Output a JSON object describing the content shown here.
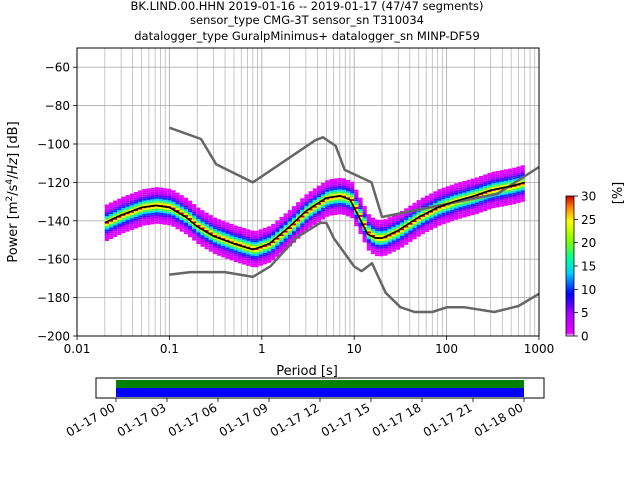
{
  "title": {
    "line1": "BK.LIND.00.HHN   2019-01-16 -- 2019-01-17  (47/47 segments)",
    "line2": "sensor_type CMG-3T sensor_sn T310034",
    "line3": "datalogger_type GuralpMinimus+ datalogger_sn MINP-DF59"
  },
  "chart_data": [
    {
      "type": "heatmap",
      "xlabel": "Period [s]",
      "ylabel": "Power [m2/s4/Hz] [dB]",
      "x_scale": "log",
      "xlim": [
        0.01,
        1000
      ],
      "ylim": [
        -200,
        -50
      ],
      "x_ticks": [
        "0.01",
        "0.1",
        "1",
        "10",
        "100",
        "1000"
      ],
      "y_ticks": [
        "−60",
        "−80",
        "−100",
        "−120",
        "−140",
        "−160",
        "−180",
        "−200"
      ],
      "y_tick_values": [
        -60,
        -80,
        -100,
        -120,
        -140,
        -160,
        -180,
        -200
      ],
      "grid": true,
      "colorbar": {
        "label": "[%]",
        "ticks": [
          "0",
          "5",
          "10",
          "15",
          "20",
          "25",
          "30"
        ],
        "range": [
          0,
          30
        ],
        "colormap": "pqlx"
      },
      "mode_curve": {
        "x": [
          0.02,
          0.03,
          0.05,
          0.07,
          0.1,
          0.15,
          0.2,
          0.3,
          0.5,
          0.8,
          1.2,
          2,
          3,
          4,
          5,
          7,
          9,
          11,
          14,
          17,
          20,
          30,
          50,
          80,
          120,
          200,
          300,
          500,
          700
        ],
        "y": [
          -141,
          -137,
          -133,
          -132,
          -133,
          -138,
          -143,
          -148,
          -152,
          -155,
          -152,
          -143,
          -135,
          -131,
          -128,
          -127,
          -129,
          -137,
          -147,
          -149,
          -149,
          -145,
          -138,
          -133,
          -130,
          -127,
          -124,
          -122,
          -120
        ]
      },
      "noise_model_high": {
        "x": [
          0.1,
          0.22,
          0.32,
          0.8,
          3.8,
          4.6,
          6.3,
          7.9,
          15.4,
          20,
          354,
          1000
        ],
        "y": [
          -91.5,
          -97.4,
          -110.5,
          -120,
          -98,
          -96.5,
          -101,
          -113.5,
          -120,
          -138,
          -126,
          -112
        ]
      },
      "noise_model_low": {
        "x": [
          0.1,
          0.17,
          0.4,
          0.8,
          1.24,
          2.4,
          4.3,
          5,
          6,
          10,
          12,
          15.6,
          21.9,
          31.6,
          45,
          70,
          101,
          154,
          328,
          600,
          1000
        ],
        "y": [
          -168,
          -166.7,
          -166.7,
          -169.2,
          -163.7,
          -148.6,
          -141.1,
          -141.1,
          -149,
          -163.8,
          -166.2,
          -162.1,
          -177.5,
          -185,
          -187.5,
          -187.5,
          -185,
          -185,
          -187.5,
          -184.4,
          -178
        ]
      }
    },
    {
      "type": "timeline",
      "x_ticks": [
        "01-17 00",
        "01-17 03",
        "01-17 06",
        "01-17 09",
        "01-17 12",
        "01-17 15",
        "01-17 18",
        "01-17 21",
        "01-18 00"
      ],
      "coverage": {
        "data_fraction": 1.0,
        "gaps": 0
      },
      "colors": {
        "data": "#0000ff",
        "psd": "#008000"
      }
    }
  ],
  "colors": {
    "mode": "#000000",
    "noise_models": "#666666",
    "grid": "#b0b0b0"
  }
}
